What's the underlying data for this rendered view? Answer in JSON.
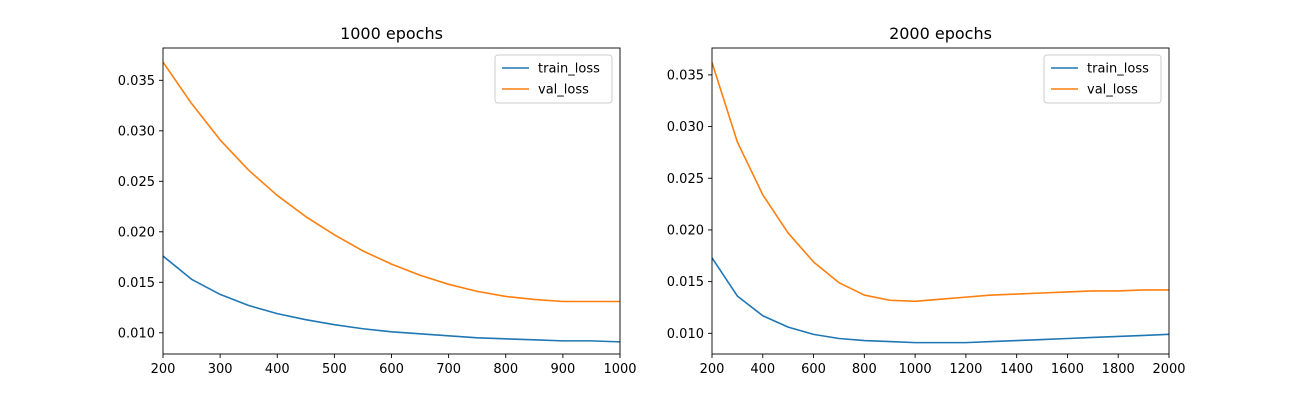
{
  "chart_data": [
    {
      "type": "line",
      "title": "1000 epochs",
      "xlabel": "",
      "ylabel": "",
      "xlim": [
        200,
        1000
      ],
      "ylim": [
        0.0079,
        0.0382
      ],
      "xticks": [
        200,
        300,
        400,
        500,
        600,
        700,
        800,
        900,
        1000
      ],
      "xtick_labels": [
        "200",
        "300",
        "400",
        "500",
        "600",
        "700",
        "800",
        "900",
        "1000"
      ],
      "yticks": [
        0.01,
        0.015,
        0.02,
        0.025,
        0.03,
        0.035
      ],
      "ytick_labels": [
        "0.010",
        "0.015",
        "0.020",
        "0.025",
        "0.030",
        "0.035"
      ],
      "grid": false,
      "legend": "top-right",
      "series": [
        {
          "name": "train_loss",
          "color": "#1f77b4",
          "x": [
            200,
            250,
            300,
            350,
            400,
            450,
            500,
            550,
            600,
            650,
            700,
            750,
            800,
            850,
            900,
            950,
            1000
          ],
          "y": [
            0.0176,
            0.0153,
            0.0138,
            0.0127,
            0.0119,
            0.0113,
            0.0108,
            0.0104,
            0.0101,
            0.0099,
            0.0097,
            0.0095,
            0.0094,
            0.0093,
            0.0092,
            0.0092,
            0.0091
          ]
        },
        {
          "name": "val_loss",
          "color": "#ff7f0e",
          "x": [
            200,
            250,
            300,
            350,
            400,
            450,
            500,
            550,
            600,
            650,
            700,
            750,
            800,
            850,
            900,
            950,
            1000
          ],
          "y": [
            0.0368,
            0.0327,
            0.0291,
            0.0261,
            0.0236,
            0.0215,
            0.0197,
            0.0181,
            0.0168,
            0.0157,
            0.0148,
            0.0141,
            0.0136,
            0.0133,
            0.0131,
            0.0131,
            0.0131
          ]
        }
      ]
    },
    {
      "type": "line",
      "title": "2000 epochs",
      "xlabel": "",
      "ylabel": "",
      "xlim": [
        200,
        2000
      ],
      "ylim": [
        0.008,
        0.0376
      ],
      "xticks": [
        200,
        400,
        600,
        800,
        1000,
        1200,
        1400,
        1600,
        1800,
        2000
      ],
      "xtick_labels": [
        "200",
        "400",
        "600",
        "800",
        "1000",
        "1200",
        "1400",
        "1600",
        "1800",
        "2000"
      ],
      "yticks": [
        0.01,
        0.015,
        0.02,
        0.025,
        0.03,
        0.035
      ],
      "ytick_labels": [
        "0.010",
        "0.015",
        "0.020",
        "0.025",
        "0.030",
        "0.035"
      ],
      "grid": false,
      "legend": "top-right",
      "series": [
        {
          "name": "train_loss",
          "color": "#1f77b4",
          "x": [
            200,
            300,
            400,
            500,
            600,
            700,
            800,
            900,
            1000,
            1100,
            1200,
            1300,
            1400,
            1500,
            1600,
            1700,
            1800,
            1900,
            2000
          ],
          "y": [
            0.0173,
            0.0136,
            0.0117,
            0.0106,
            0.0099,
            0.0095,
            0.0093,
            0.0092,
            0.0091,
            0.0091,
            0.0091,
            0.0092,
            0.0093,
            0.0094,
            0.0095,
            0.0096,
            0.0097,
            0.0098,
            0.0099
          ]
        },
        {
          "name": "val_loss",
          "color": "#ff7f0e",
          "x": [
            200,
            300,
            400,
            500,
            600,
            700,
            800,
            900,
            1000,
            1100,
            1200,
            1300,
            1400,
            1500,
            1600,
            1700,
            1800,
            1900,
            2000
          ],
          "y": [
            0.0362,
            0.0285,
            0.0234,
            0.0197,
            0.0169,
            0.0149,
            0.0137,
            0.0132,
            0.0131,
            0.0133,
            0.0135,
            0.0137,
            0.0138,
            0.0139,
            0.014,
            0.0141,
            0.0141,
            0.0142,
            0.0142
          ]
        }
      ]
    }
  ]
}
